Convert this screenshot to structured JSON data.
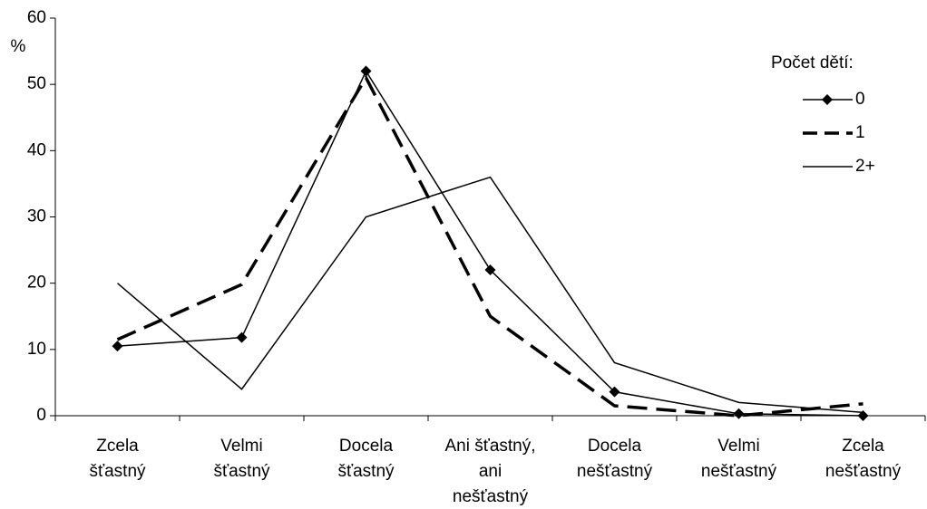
{
  "chart_data": {
    "type": "line",
    "y_label": "%",
    "categories": [
      [
        "Zcela",
        "šťastný"
      ],
      [
        "Velmi",
        "šťastný"
      ],
      [
        "Docela",
        "šťastný"
      ],
      [
        "Ani šťastný,",
        "ani",
        "nešťastný"
      ],
      [
        "Docela",
        "nešťastný"
      ],
      [
        "Velmi",
        "nešťastný"
      ],
      [
        "Zcela",
        "nešťastný"
      ]
    ],
    "series": [
      {
        "name": "0",
        "color": "#000000",
        "marker": "diamond",
        "dash": false,
        "width": 1.5,
        "values": [
          10.5,
          11.8,
          52,
          22,
          3.6,
          0.3,
          0
        ]
      },
      {
        "name": "1",
        "color": "#000000",
        "marker": "none",
        "dash": true,
        "width": 3.5,
        "values": [
          11.5,
          19.8,
          51,
          15,
          1.5,
          0,
          1.8
        ]
      },
      {
        "name": "2+",
        "color": "#000000",
        "marker": "none",
        "dash": false,
        "width": 1.5,
        "values": [
          20,
          4,
          30,
          36,
          8,
          2,
          0.5
        ]
      }
    ],
    "legend_title": "Počet dětí:",
    "ylim": [
      0,
      60
    ],
    "yticks": [
      0,
      10,
      20,
      30,
      40,
      50,
      60
    ],
    "grid": false
  }
}
